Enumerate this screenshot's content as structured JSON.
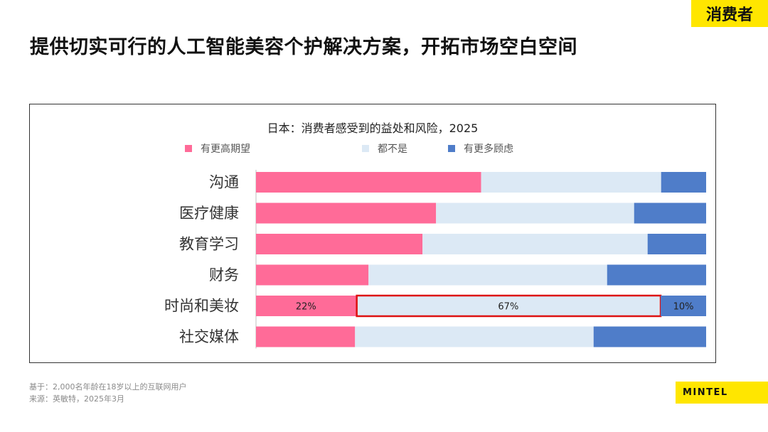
{
  "header": {
    "tag": "消费者",
    "title": "提供切实可行的人工智能美容个护解决方案，开拓市场空白空间"
  },
  "footer": {
    "base": "基于：2,000名年龄在18岁以上的互联网用户",
    "source": "来源：英敏特，2025年3月"
  },
  "brand": {
    "name": "MINTEL"
  },
  "colors": {
    "more_expectation": "#ff6b98",
    "neither": "#dce9f5",
    "more_concern": "#4f7dc9",
    "highlight": "#dd1111",
    "accent": "#ffe600"
  },
  "chart_data": {
    "type": "bar",
    "stacked": true,
    "orientation": "horizontal",
    "title": "日本：消费者感受到的益处和风险，2025",
    "legend_position": "top",
    "categories": [
      "沟通",
      "医疗健康",
      "教育学习",
      "财务",
      "时尚和美妆",
      "社交媒体"
    ],
    "series": [
      {
        "name": "有更高期望",
        "color": "#ff6b98",
        "values": [
          50,
          40,
          37,
          25,
          22,
          22
        ]
      },
      {
        "name": "都不是",
        "color": "#dce9f5",
        "values": [
          40,
          44,
          50,
          53,
          67,
          53
        ]
      },
      {
        "name": "有更多顾虑",
        "color": "#4f7dc9",
        "values": [
          10,
          16,
          13,
          22,
          10,
          25
        ]
      }
    ],
    "data_labels": [
      {
        "category": "时尚和美妆",
        "series": "有更高期望",
        "text": "22%"
      },
      {
        "category": "时尚和美妆",
        "series": "都不是",
        "text": "67%"
      },
      {
        "category": "时尚和美妆",
        "series": "有更多顾虑",
        "text": "10%"
      }
    ],
    "highlight": {
      "category": "时尚和美妆",
      "series": "都不是"
    },
    "xlim": [
      0,
      100
    ],
    "grid": false
  }
}
